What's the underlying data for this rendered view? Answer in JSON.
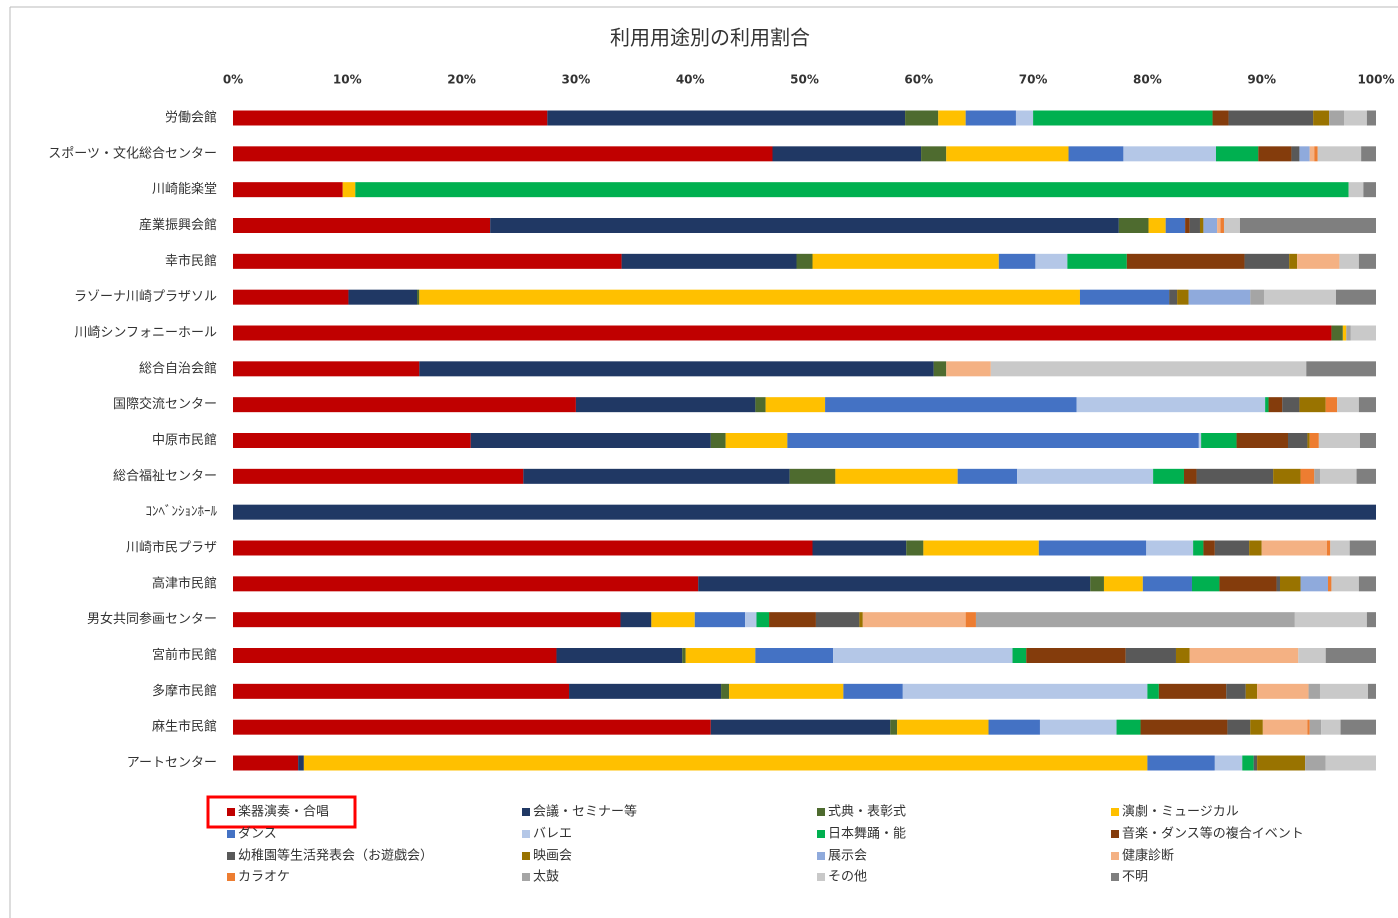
{
  "chart_data": {
    "type": "stacked-bar-horizontal",
    "title": "利用用途別の利用割合",
    "categories": [
      "労働会館",
      "スポーツ・文化総合センター",
      "川崎能楽堂",
      "産業振興会館",
      "幸市民館",
      "ラゾーナ川崎プラザソル",
      "川崎シンフォニーホール",
      "総合自治会館",
      "国際交流センター",
      "中原市民館",
      "総合福祉センター",
      "ｺﾝﾍﾞﾝｼｮﾝﾎｰﾙ",
      "川崎市民プラザ",
      "高津市民館",
      "男女共同参画センター",
      "宮前市民館",
      "多摩市民館",
      "麻生市民館",
      "アートセンター"
    ],
    "xlim": [
      0,
      100
    ],
    "xticks": [
      {
        "value": 0,
        "label": "0%"
      },
      {
        "value": 10,
        "label": "10%"
      },
      {
        "value": 20,
        "label": "20%"
      },
      {
        "value": 30,
        "label": "30%"
      },
      {
        "value": 40,
        "label": "40%"
      },
      {
        "value": 50,
        "label": "50%"
      },
      {
        "value": 60,
        "label": "60%"
      },
      {
        "value": 70,
        "label": "70%"
      },
      {
        "value": 80,
        "label": "80%"
      },
      {
        "value": 90,
        "label": "90%"
      },
      {
        "value": 100,
        "label": "100%"
      }
    ],
    "series": [
      {
        "name": "楽器演奏・合唱",
        "color": "#c00000",
        "values": [
          27.5,
          47.2,
          9.6,
          22.5,
          34.0,
          10.1,
          96.1,
          16.3,
          30.0,
          20.8,
          25.4,
          0,
          50.7,
          40.7,
          33.9,
          28.3,
          29.4,
          41.8,
          5.7
        ]
      },
      {
        "name": "会議・セミナー等",
        "color": "#203864",
        "values": [
          31.3,
          13.0,
          0,
          55.0,
          15.3,
          6.0,
          0,
          45.0,
          15.7,
          21.0,
          23.3,
          100,
          8.2,
          34.3,
          2.7,
          11.0,
          13.3,
          15.7,
          0.5
        ]
      },
      {
        "name": "式典・表彰式",
        "color": "#4e6b2f",
        "values": [
          2.9,
          2.2,
          0,
          2.6,
          1.4,
          0.2,
          1.0,
          1.1,
          0.9,
          1.3,
          4.0,
          0,
          1.5,
          1.2,
          0,
          0.3,
          0.7,
          0.6,
          0
        ]
      },
      {
        "name": "演劇・ミュージカル",
        "color": "#ffc000",
        "values": [
          2.4,
          10.7,
          1.1,
          1.5,
          16.3,
          57.8,
          0.3,
          0,
          5.2,
          5.4,
          10.7,
          0,
          10.1,
          3.4,
          3.8,
          6.1,
          10.0,
          8.0,
          73.8
        ]
      },
      {
        "name": "ダンス",
        "color": "#4472c4",
        "values": [
          4.4,
          4.8,
          0,
          1.7,
          3.2,
          7.8,
          0,
          0,
          22.0,
          36.0,
          5.2,
          0,
          9.4,
          4.3,
          4.4,
          6.8,
          5.2,
          4.5,
          5.9
        ]
      },
      {
        "name": "バレエ",
        "color": "#b4c7e7",
        "values": [
          1.5,
          8.1,
          0,
          0,
          2.8,
          0,
          0,
          0,
          16.5,
          0.2,
          11.9,
          0,
          4.1,
          0,
          1.0,
          15.7,
          21.4,
          6.7,
          2.4
        ]
      },
      {
        "name": "日本舞踊・能",
        "color": "#00b050",
        "values": [
          15.7,
          3.7,
          86.9,
          0,
          5.2,
          0,
          0,
          0,
          0.3,
          3.1,
          2.7,
          0,
          0.9,
          2.4,
          1.1,
          1.2,
          1.0,
          2.1,
          1.0
        ]
      },
      {
        "name": "音楽・ダンス等の複合イベント",
        "color": "#843c0c",
        "values": [
          1.4,
          2.9,
          0,
          0.4,
          10.3,
          0,
          0,
          0,
          1.2,
          4.5,
          1.1,
          0,
          1.0,
          5.0,
          4.1,
          8.7,
          5.9,
          7.6,
          0
        ]
      },
      {
        "name": "幼稚園等生活発表会（お遊戯会）",
        "color": "#595959",
        "values": [
          7.4,
          0.7,
          0,
          0.9,
          3.9,
          0.7,
          0,
          0,
          1.5,
          1.7,
          6.7,
          0,
          3.0,
          0.3,
          3.8,
          4.4,
          1.7,
          2.0,
          0.3
        ]
      },
      {
        "name": "映画会",
        "color": "#997300",
        "values": [
          1.4,
          0,
          0,
          0.3,
          0.7,
          1.0,
          0,
          0,
          2.3,
          0.2,
          2.4,
          0,
          1.1,
          1.8,
          0.3,
          1.2,
          1.0,
          1.1,
          4.2
        ]
      },
      {
        "name": "展示会",
        "color": "#8faadc",
        "values": [
          0,
          0.9,
          0,
          1.2,
          0,
          5.4,
          0,
          0,
          0,
          0,
          0,
          0,
          0,
          2.4,
          0,
          0,
          0,
          0,
          0
        ]
      },
      {
        "name": "健康診断",
        "color": "#f4b183",
        "values": [
          0,
          0.4,
          0,
          0.3,
          3.7,
          0,
          0,
          3.9,
          0,
          0,
          0,
          0,
          5.7,
          0,
          9.0,
          9.5,
          4.5,
          3.9,
          0
        ]
      },
      {
        "name": "カラオケ",
        "color": "#ed7d31",
        "values": [
          0,
          0.3,
          0,
          0.3,
          0,
          0,
          0,
          0,
          1.0,
          0.8,
          1.2,
          0,
          0.3,
          0.3,
          0.9,
          0,
          0,
          0.2,
          0
        ]
      },
      {
        "name": "太鼓",
        "color": "#a5a5a5",
        "values": [
          1.3,
          0,
          0,
          0,
          0,
          1.2,
          0.4,
          0,
          0,
          0,
          0.5,
          0,
          0,
          0,
          27.9,
          0,
          1.0,
          1.0,
          1.8
        ]
      },
      {
        "name": "その他",
        "color": "#c9c9c9",
        "values": [
          2.0,
          3.8,
          1.3,
          1.4,
          1.7,
          6.3,
          2.2,
          27.6,
          1.9,
          3.6,
          3.2,
          0,
          1.7,
          2.4,
          6.3,
          2.4,
          4.2,
          1.7,
          4.4
        ]
      },
      {
        "name": "不明",
        "color": "#7f7f7f",
        "values": [
          0.8,
          1.3,
          1.1,
          11.9,
          1.5,
          3.5,
          0,
          6.1,
          1.5,
          1.4,
          1.7,
          0,
          2.3,
          1.5,
          0.8,
          4.4,
          0.7,
          3.1,
          0
        ]
      }
    ]
  }
}
